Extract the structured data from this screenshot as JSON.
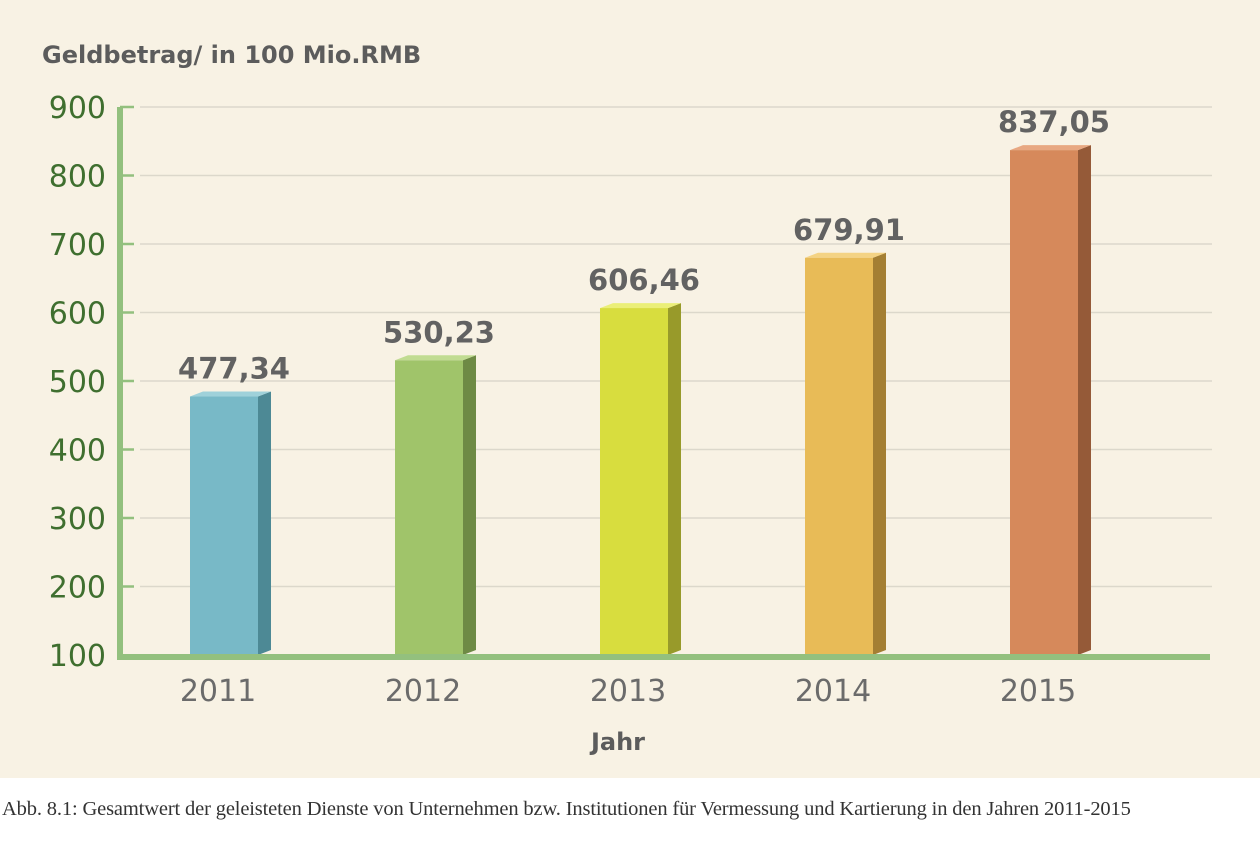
{
  "chart_data": {
    "type": "bar",
    "ylabel": "Geldbetrag/ in 100 Mio.RMB",
    "xlabel": "Jahr",
    "categories": [
      "2011",
      "2012",
      "2013",
      "2014",
      "2015"
    ],
    "values": [
      477.34,
      530.23,
      606.46,
      679.91,
      837.05
    ],
    "value_labels": [
      "477,34",
      "530,23",
      "606,46",
      "679,91",
      "837,05"
    ],
    "ylim": [
      100,
      900
    ],
    "yticks": [
      100,
      200,
      300,
      400,
      500,
      600,
      700,
      800,
      900
    ],
    "grid": true,
    "legend": "none",
    "bar_colors": [
      {
        "face": "#78b9c7",
        "side": "#4d8995",
        "top": "#9fd1da"
      },
      {
        "face": "#a0c46a",
        "side": "#6e8a45",
        "top": "#c1dc92"
      },
      {
        "face": "#d8dd3e",
        "side": "#989a2a",
        "top": "#ebef78"
      },
      {
        "face": "#e8bb57",
        "side": "#a47f33",
        "top": "#f4d384"
      },
      {
        "face": "#d6895b",
        "side": "#955a38",
        "top": "#e8a882"
      }
    ],
    "axis_color": "#93c07e",
    "grid_color": "#dcd8cb"
  },
  "caption": "Abb. 8.1: Gesamtwert der geleisteten Dienste von Unternehmen bzw. Institutionen für Vermessung und Kartierung in den Jahren 2011-2015"
}
